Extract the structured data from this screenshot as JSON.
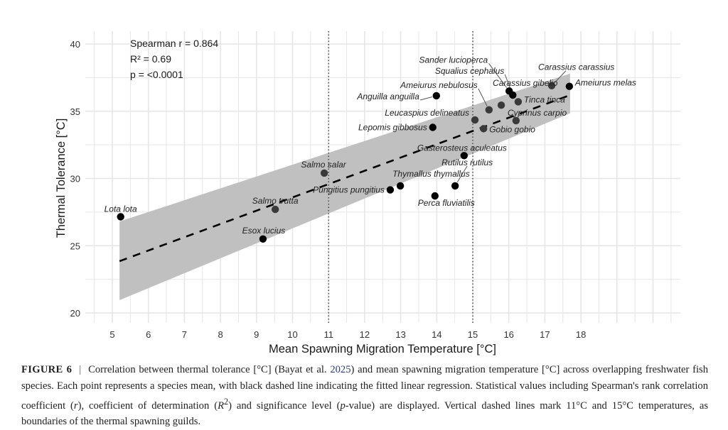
{
  "chart_data": {
    "type": "scatter",
    "title": "",
    "xlabel": "Mean Spawning Migration Temperature [°C]",
    "ylabel": "Thermal Tolerance [°C]",
    "xlim": [
      4.5,
      20.5
    ],
    "ylim": [
      19.3,
      40.9
    ],
    "x_ticks": [
      5,
      6,
      7,
      8,
      9,
      10,
      11,
      12,
      13,
      14,
      15,
      16,
      17,
      18
    ],
    "y_ticks": [
      20,
      25,
      30,
      35,
      40
    ],
    "grid": true,
    "legend": "none",
    "annotations": {
      "spearman": "Spearman r = 0.864",
      "r2": "R² = 0.69",
      "p": "p = <0.0001"
    },
    "vlines": [
      {
        "x": 11,
        "style": "dotted",
        "label": "11"
      },
      {
        "x": 15,
        "style": "dotted",
        "label": "15"
      }
    ],
    "regression": {
      "style": "dashed",
      "x": [
        5.2,
        17.7
      ],
      "y": [
        23.85,
        36.2
      ]
    },
    "confidence_band": {
      "x": [
        5.2,
        17.7
      ],
      "lower": [
        20.95,
        34.85
      ],
      "upper": [
        26.8,
        37.8
      ]
    },
    "points": [
      {
        "species": "Lota lota",
        "x": 5.23,
        "y": 27.15,
        "in_band": false
      },
      {
        "species": "Esox lucius",
        "x": 9.18,
        "y": 25.5,
        "in_band": false
      },
      {
        "species": "Salmo trutta",
        "x": 9.52,
        "y": 27.7,
        "in_band": true
      },
      {
        "species": "Salmo salar",
        "x": 10.88,
        "y": 30.4,
        "in_band": true
      },
      {
        "species": "Pungitius pungitius",
        "x": 12.71,
        "y": 29.15,
        "in_band": false
      },
      {
        "species": "Thymallus thymallus",
        "x": 12.99,
        "y": 29.45,
        "in_band": false
      },
      {
        "species": "Perca fluviatilis",
        "x": 13.95,
        "y": 28.7,
        "in_band": false
      },
      {
        "species": "Rutilus rutilus",
        "x": 14.51,
        "y": 29.45,
        "in_band": false
      },
      {
        "species": "Gasterosteus aculeatus",
        "x": 14.76,
        "y": 31.7,
        "in_band": false
      },
      {
        "species": "Lepomis gibbosus",
        "x": 13.89,
        "y": 33.8,
        "in_band": false
      },
      {
        "species": "Anguilla anguilla",
        "x": 13.99,
        "y": 36.15,
        "in_band": false
      },
      {
        "species": "Leucaspius delineatus",
        "x": 15.06,
        "y": 34.35,
        "in_band": true
      },
      {
        "species": "Gobio gobio",
        "x": 15.3,
        "y": 33.7,
        "in_band": true
      },
      {
        "species": "Ameiurus nebulosus",
        "x": 15.45,
        "y": 35.1,
        "in_band": true
      },
      {
        "species": "Carassius gibelio",
        "x": 15.79,
        "y": 35.45,
        "in_band": true
      },
      {
        "species": "Sander lucioperca",
        "x": 16.01,
        "y": 36.5,
        "in_band": false
      },
      {
        "species": "Squalius cephalus",
        "x": 16.11,
        "y": 36.2,
        "in_band": false
      },
      {
        "species": "Tinca tinca",
        "x": 16.26,
        "y": 35.7,
        "in_band": true
      },
      {
        "species": "Cyprinus carpio",
        "x": 16.2,
        "y": 34.3,
        "in_band": true
      },
      {
        "species": "Carassius carassius",
        "x": 17.19,
        "y": 36.9,
        "in_band": true
      },
      {
        "species": "Ameiurus melas",
        "x": 17.68,
        "y": 36.85,
        "in_band": false
      }
    ]
  },
  "caption": {
    "figure_label": "FIGURE 6",
    "separator": "|",
    "text_1": "Correlation between thermal tolerance [°C] (Bayat et al. ",
    "cite_year": "2025",
    "text_2": ") and mean spawning migration temperature [°C] across overlapping freshwater fish species. Each point represents a species mean, with black dashed line indicating the fitted linear regression. Statistical values including Spearman's rank correlation coefficient (",
    "r_symbol": "r",
    "text_3": "), coefficient of determination (",
    "r2_symbol": "R",
    "r2_sup": "2",
    "text_4": ") and significance level (",
    "p_symbol": "p",
    "text_5": "-value) are displayed. Vertical dashed lines mark 11°C and 15°C temperatures, as boundaries of the thermal spawning guilds."
  },
  "colors": {
    "point": "#000000",
    "point_in_band": "#3a3a3a",
    "band": "#c0c0c0",
    "grid": "#e6e6e6",
    "line": "#000000",
    "cite_link": "#2a3a9a"
  }
}
